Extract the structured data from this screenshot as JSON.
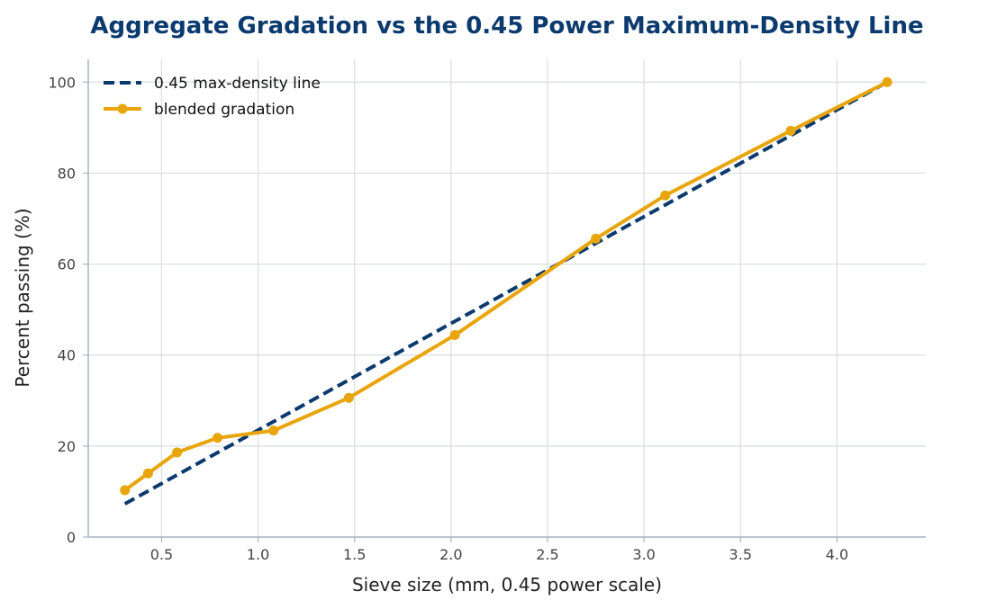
{
  "chart_data": {
    "type": "line",
    "title": "Aggregate Gradation vs the 0.45 Power Maximum-Density Line",
    "xlabel": "Sieve size (mm, 0.45 power scale)",
    "ylabel": "Percent passing (%)",
    "xlim": [
      0.12,
      4.46
    ],
    "ylim": [
      0,
      105
    ],
    "xticks": [
      "0.5",
      "1.0",
      "1.5",
      "2.0",
      "2.5",
      "3.0",
      "3.5",
      "4.0"
    ],
    "yticks": [
      "0",
      "20",
      "40",
      "60",
      "80",
      "100"
    ],
    "grid": true,
    "legend_position": "top-left",
    "series": [
      {
        "name": "0.45 max-density line",
        "style": "dashed",
        "color": "#0b3a6e",
        "x": [
          0.31,
          4.26
        ],
        "y": [
          7.3,
          100
        ]
      },
      {
        "name": "blended gradation",
        "style": "solid-markers",
        "color": "#e8a50c",
        "x": [
          0.31,
          0.43,
          0.58,
          0.79,
          1.08,
          1.47,
          2.02,
          2.75,
          3.11,
          3.76,
          4.26
        ],
        "y": [
          10.3,
          14.0,
          18.6,
          21.8,
          23.4,
          30.6,
          44.4,
          65.6,
          75.1,
          89.3,
          100
        ]
      }
    ]
  }
}
